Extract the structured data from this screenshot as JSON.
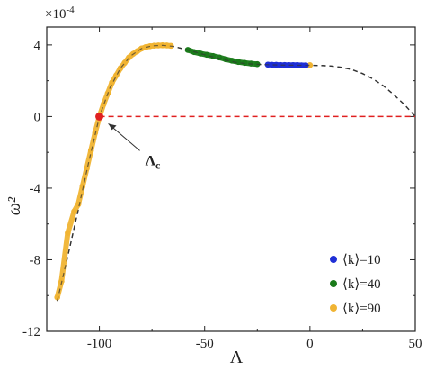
{
  "chart_data": {
    "type": "scatter",
    "title": "",
    "xlabel": "Λ",
    "ylabel": "ω²",
    "y_multiplier_label": "×10",
    "y_multiplier_exponent": "-4",
    "xlim": [
      -125,
      50
    ],
    "ylim": [
      -12,
      5
    ],
    "x_ticks": [
      -100,
      -50,
      0,
      50
    ],
    "x_tick_labels": [
      "-100",
      "-50",
      "0",
      "50"
    ],
    "y_ticks": [
      4,
      0,
      -4,
      -8,
      -12
    ],
    "y_tick_labels": [
      "4",
      "0",
      "-4",
      "-8",
      "-12"
    ],
    "grid": false,
    "legend_position": "bottom-right",
    "colors": {
      "k10": "#1f2fd6",
      "k40": "#1a7a1a",
      "k90": "#f0b433",
      "theory": "#333333",
      "zero_line": "#e02020",
      "critical_point": "#e02020"
    },
    "theory_curve": {
      "name": "",
      "style": "dashed",
      "x": [
        -120,
        -115,
        -110,
        -105,
        -100,
        -95,
        -90,
        -85,
        -80,
        -75,
        -70,
        -65,
        -60,
        -55,
        -50,
        -45,
        -40,
        -35,
        -30,
        -25,
        -20,
        -15,
        -10,
        -5,
        0,
        5,
        10,
        15,
        20,
        25,
        30,
        35,
        40,
        45,
        50
      ],
      "y": [
        -10.3,
        -7.8,
        -5.2,
        -2.5,
        0.0,
        1.6,
        2.7,
        3.4,
        3.8,
        3.95,
        3.98,
        3.92,
        3.78,
        3.62,
        3.45,
        3.3,
        3.15,
        3.02,
        2.95,
        2.92,
        2.9,
        2.88,
        2.87,
        2.86,
        2.86,
        2.85,
        2.82,
        2.75,
        2.62,
        2.4,
        2.1,
        1.7,
        1.2,
        0.65,
        0.0
      ]
    },
    "zero_line": {
      "y": 0,
      "x": [
        -100,
        50
      ],
      "style": "dashed"
    },
    "critical_point": {
      "x": -100,
      "y": 0,
      "label": "Λ",
      "label_sub": "c"
    },
    "series": [
      {
        "name": "⟨k⟩=10",
        "x": [
          -20,
          -18,
          -16,
          -14,
          -12,
          -10,
          -8,
          -6,
          -4,
          -2
        ],
        "y": [
          2.9,
          2.89,
          2.89,
          2.88,
          2.88,
          2.87,
          2.87,
          2.87,
          2.86,
          2.86
        ]
      },
      {
        "name": "⟨k⟩=40",
        "x": [
          -58,
          -55,
          -52,
          -49,
          -46,
          -43,
          -40,
          -37,
          -34,
          -31,
          -28,
          -25
        ],
        "y": [
          3.72,
          3.6,
          3.52,
          3.45,
          3.38,
          3.3,
          3.2,
          3.12,
          3.05,
          3.0,
          2.96,
          2.93
        ]
      },
      {
        "name": "⟨k⟩=90",
        "x": [
          -120,
          -118,
          -115,
          -112,
          -110,
          -108,
          -106,
          -104,
          -102,
          -100,
          -98,
          -96,
          -94,
          -92,
          -90,
          -88,
          -86,
          -84,
          -82,
          -80,
          -78,
          -76,
          -74,
          -72,
          -70,
          -68,
          -66,
          0
        ],
        "y": [
          -10.1,
          -9.2,
          -6.5,
          -5.3,
          -4.9,
          -3.9,
          -2.9,
          -1.9,
          -0.9,
          0.0,
          0.7,
          1.3,
          1.9,
          2.3,
          2.7,
          3.0,
          3.3,
          3.5,
          3.65,
          3.8,
          3.88,
          3.93,
          3.96,
          3.97,
          3.98,
          3.97,
          3.95,
          2.87
        ]
      }
    ]
  }
}
